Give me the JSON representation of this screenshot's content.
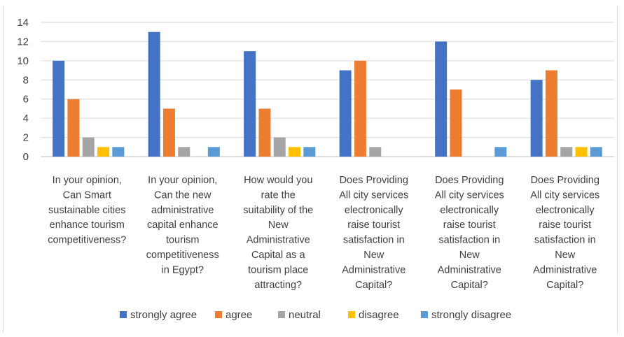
{
  "chart_data": {
    "type": "bar",
    "title": "",
    "xlabel": "",
    "ylabel": "",
    "ylim": [
      0,
      14
    ],
    "yticks": [
      0,
      2,
      4,
      6,
      8,
      10,
      12,
      14
    ],
    "grid": true,
    "legend_position": "bottom",
    "categories": [
      "In your opinion, Can Smart sustainable cities enhance tourism competitiveness?",
      "In your opinion, Can the new administrative capital enhance tourism competitiveness in Egypt?",
      "How would you rate the suitability of the New Administrative Capital as a tourism place attracting?",
      "Does Providing All city services electronically raise tourist satisfaction in New Administrative Capital?",
      "Does Providing All city services electronically raise tourist satisfaction in New Administrative Capital?",
      "Does Providing All city services electronically raise tourist satisfaction in New Administrative Capital?"
    ],
    "category_lines": [
      [
        "In your opinion,",
        "Can Smart",
        "sustainable cities",
        "enhance tourism",
        "competitiveness?"
      ],
      [
        "In your opinion,",
        "Can the new",
        "administrative",
        "capital enhance",
        "tourism",
        "competitiveness",
        "in Egypt?"
      ],
      [
        "How would you",
        "rate the",
        "suitability of the",
        "New",
        "Administrative",
        "Capital as a",
        "tourism place",
        "attracting?"
      ],
      [
        "Does Providing",
        "All city services",
        "electronically",
        "raise tourist",
        "satisfaction in",
        "New",
        "Administrative",
        "Capital?"
      ],
      [
        "Does Providing",
        "All city services",
        "electronically",
        "raise tourist",
        "satisfaction in",
        "New",
        "Administrative",
        "Capital?"
      ],
      [
        "Does Providing",
        "All city services",
        "electronically",
        "raise tourist",
        "satisfaction in",
        "New",
        "Administrative",
        "Capital?"
      ]
    ],
    "series": [
      {
        "name": "strongly agree",
        "color": "#4472c4",
        "values": [
          10,
          13,
          11,
          9,
          12,
          8
        ]
      },
      {
        "name": "agree",
        "color": "#ed7d31",
        "values": [
          6,
          5,
          5,
          10,
          7,
          9
        ]
      },
      {
        "name": "neutral",
        "color": "#a5a5a5",
        "values": [
          2,
          1,
          2,
          1,
          0,
          1
        ]
      },
      {
        "name": "disagree",
        "color": "#ffc000",
        "values": [
          1,
          0,
          1,
          0,
          0,
          1
        ]
      },
      {
        "name": "strongly disagree",
        "color": "#5b9bd5",
        "values": [
          1,
          1,
          1,
          0,
          1,
          1
        ]
      }
    ]
  }
}
